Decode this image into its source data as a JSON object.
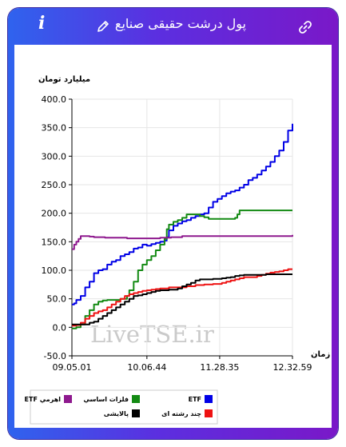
{
  "header": {
    "title": "پول درشت حقیقی صنایع",
    "info_label": "i",
    "icons": {
      "info": "info-icon",
      "edit": "pencil-icon",
      "link": "link-icon"
    }
  },
  "watermark": "LiveTSE.ir",
  "chart_data": {
    "type": "line",
    "ylabel": "میلیارد تومان",
    "xlabel": "زمان",
    "ylim": [
      -50,
      400
    ],
    "yticks": [
      "400.0",
      "350.0",
      "300.0",
      "250.0",
      "200.0",
      "150.0",
      "100.0",
      "50.0",
      "0.0",
      "-50.0"
    ],
    "xlim": [
      0,
      100
    ],
    "xticks": [
      {
        "x": 0,
        "label": "09.05.01"
      },
      {
        "x": 34,
        "label": "10.06.44"
      },
      {
        "x": 67,
        "label": "11.28.35"
      },
      {
        "x": 100,
        "label": "12.32.59"
      }
    ],
    "grid": true,
    "legend_position": "bottom",
    "series": [
      {
        "name": "ETF",
        "color": "#0000e6",
        "points": [
          [
            0,
            40
          ],
          [
            1,
            42
          ],
          [
            2,
            48
          ],
          [
            4,
            55
          ],
          [
            6,
            70
          ],
          [
            8,
            80
          ],
          [
            10,
            95
          ],
          [
            12,
            100
          ],
          [
            14,
            102
          ],
          [
            16,
            110
          ],
          [
            18,
            115
          ],
          [
            20,
            118
          ],
          [
            22,
            125
          ],
          [
            24,
            128
          ],
          [
            26,
            132
          ],
          [
            28,
            138
          ],
          [
            30,
            140
          ],
          [
            32,
            145
          ],
          [
            34,
            143
          ],
          [
            36,
            146
          ],
          [
            38,
            148
          ],
          [
            40,
            150
          ],
          [
            42,
            152
          ],
          [
            43,
            158
          ],
          [
            44,
            170
          ],
          [
            46,
            178
          ],
          [
            48,
            182
          ],
          [
            50,
            186
          ],
          [
            52,
            188
          ],
          [
            54,
            192
          ],
          [
            56,
            195
          ],
          [
            58,
            198
          ],
          [
            60,
            200
          ],
          [
            62,
            210
          ],
          [
            64,
            220
          ],
          [
            66,
            225
          ],
          [
            68,
            230
          ],
          [
            70,
            235
          ],
          [
            72,
            238
          ],
          [
            74,
            240
          ],
          [
            76,
            245
          ],
          [
            78,
            250
          ],
          [
            80,
            258
          ],
          [
            82,
            262
          ],
          [
            84,
            268
          ],
          [
            86,
            275
          ],
          [
            88,
            282
          ],
          [
            90,
            290
          ],
          [
            92,
            300
          ],
          [
            94,
            310
          ],
          [
            96,
            325
          ],
          [
            98,
            345
          ],
          [
            100,
            357
          ]
        ]
      },
      {
        "name": "فلزات اساسي",
        "color": "#138a13",
        "points": [
          [
            0,
            -2
          ],
          [
            2,
            0
          ],
          [
            4,
            5
          ],
          [
            6,
            20
          ],
          [
            8,
            30
          ],
          [
            10,
            40
          ],
          [
            12,
            45
          ],
          [
            14,
            47
          ],
          [
            16,
            48
          ],
          [
            20,
            48
          ],
          [
            22,
            50
          ],
          [
            25,
            55
          ],
          [
            26,
            65
          ],
          [
            28,
            80
          ],
          [
            30,
            100
          ],
          [
            32,
            110
          ],
          [
            34,
            118
          ],
          [
            36,
            125
          ],
          [
            38,
            135
          ],
          [
            40,
            145
          ],
          [
            42,
            155
          ],
          [
            43,
            172
          ],
          [
            44,
            180
          ],
          [
            46,
            185
          ],
          [
            48,
            188
          ],
          [
            50,
            192
          ],
          [
            52,
            198
          ],
          [
            56,
            198
          ],
          [
            58,
            195
          ],
          [
            60,
            193
          ],
          [
            62,
            190
          ],
          [
            64,
            190
          ],
          [
            66,
            190
          ],
          [
            70,
            190
          ],
          [
            72,
            190
          ],
          [
            74,
            192
          ],
          [
            75,
            198
          ],
          [
            76,
            205
          ],
          [
            80,
            205
          ],
          [
            90,
            205
          ],
          [
            100,
            205
          ]
        ]
      },
      {
        "name": "ETF اهرمي",
        "color": "#8e198e",
        "points": [
          [
            0,
            137
          ],
          [
            1,
            145
          ],
          [
            2,
            150
          ],
          [
            3,
            155
          ],
          [
            4,
            160
          ],
          [
            6,
            160
          ],
          [
            8,
            159
          ],
          [
            10,
            158
          ],
          [
            15,
            157
          ],
          [
            20,
            157
          ],
          [
            25,
            156
          ],
          [
            30,
            156
          ],
          [
            35,
            156
          ],
          [
            40,
            157
          ],
          [
            45,
            158
          ],
          [
            50,
            160
          ],
          [
            60,
            160
          ],
          [
            70,
            160
          ],
          [
            80,
            160
          ],
          [
            90,
            160
          ],
          [
            100,
            162
          ]
        ]
      },
      {
        "name": "چند رشته اى",
        "color": "#ee1212",
        "points": [
          [
            0,
            3
          ],
          [
            2,
            4
          ],
          [
            4,
            8
          ],
          [
            6,
            15
          ],
          [
            8,
            20
          ],
          [
            10,
            25
          ],
          [
            12,
            28
          ],
          [
            14,
            30
          ],
          [
            16,
            35
          ],
          [
            18,
            40
          ],
          [
            20,
            45
          ],
          [
            22,
            50
          ],
          [
            24,
            55
          ],
          [
            26,
            58
          ],
          [
            28,
            60
          ],
          [
            30,
            62
          ],
          [
            32,
            64
          ],
          [
            34,
            65
          ],
          [
            36,
            66
          ],
          [
            38,
            67
          ],
          [
            40,
            68
          ],
          [
            44,
            70
          ],
          [
            48,
            70
          ],
          [
            52,
            72
          ],
          [
            56,
            74
          ],
          [
            60,
            75
          ],
          [
            64,
            76
          ],
          [
            68,
            78
          ],
          [
            70,
            80
          ],
          [
            72,
            82
          ],
          [
            74,
            84
          ],
          [
            76,
            86
          ],
          [
            78,
            88
          ],
          [
            80,
            88
          ],
          [
            82,
            88
          ],
          [
            84,
            90
          ],
          [
            86,
            92
          ],
          [
            88,
            94
          ],
          [
            90,
            96
          ],
          [
            92,
            97
          ],
          [
            94,
            98
          ],
          [
            96,
            100
          ],
          [
            98,
            102
          ],
          [
            100,
            102
          ]
        ]
      },
      {
        "name": "پالايشى",
        "color": "#000000",
        "points": [
          [
            0,
            5
          ],
          [
            4,
            5
          ],
          [
            6,
            5
          ],
          [
            8,
            8
          ],
          [
            10,
            10
          ],
          [
            12,
            15
          ],
          [
            14,
            20
          ],
          [
            16,
            25
          ],
          [
            18,
            30
          ],
          [
            20,
            35
          ],
          [
            22,
            40
          ],
          [
            24,
            45
          ],
          [
            26,
            50
          ],
          [
            28,
            55
          ],
          [
            30,
            56
          ],
          [
            32,
            58
          ],
          [
            34,
            60
          ],
          [
            36,
            62
          ],
          [
            38,
            64
          ],
          [
            40,
            65
          ],
          [
            44,
            66
          ],
          [
            48,
            68
          ],
          [
            50,
            72
          ],
          [
            52,
            75
          ],
          [
            54,
            78
          ],
          [
            56,
            82
          ],
          [
            58,
            84
          ],
          [
            60,
            84
          ],
          [
            64,
            85
          ],
          [
            68,
            86
          ],
          [
            70,
            87
          ],
          [
            72,
            88
          ],
          [
            74,
            90
          ],
          [
            76,
            91
          ],
          [
            78,
            92
          ],
          [
            80,
            92
          ],
          [
            84,
            92
          ],
          [
            88,
            93
          ],
          [
            92,
            93
          ],
          [
            96,
            93
          ],
          [
            100,
            93
          ]
        ]
      }
    ]
  }
}
